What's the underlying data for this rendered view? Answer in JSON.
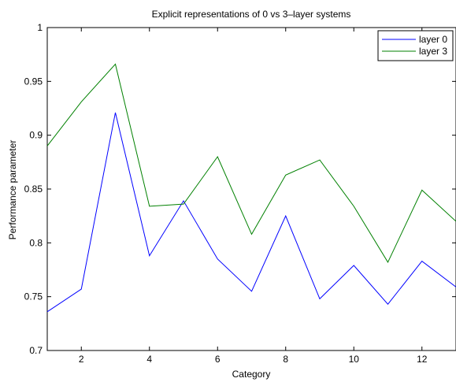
{
  "chart_data": {
    "type": "line",
    "title": "Explicit representations of 0 vs 3–layer systems",
    "xlabel": "Category",
    "ylabel": "Performance parameter",
    "xlim": [
      1,
      13
    ],
    "ylim": [
      0.7,
      1.0
    ],
    "xticks": [
      2,
      4,
      6,
      8,
      10,
      12
    ],
    "xtick_labels": [
      "2",
      "4",
      "6",
      "8",
      "10",
      "12"
    ],
    "yticks": [
      0.7,
      0.75,
      0.8,
      0.85,
      0.9,
      0.95,
      1.0
    ],
    "ytick_labels": [
      "0.7",
      "0.75",
      "0.8",
      "0.85",
      "0.9",
      "0.95",
      "1"
    ],
    "grid": false,
    "legend_position": "top-right",
    "x": [
      1,
      2,
      3,
      4,
      5,
      6,
      7,
      8,
      9,
      10,
      11,
      12,
      13
    ],
    "series": [
      {
        "name": "layer 0",
        "color": "#0000ff",
        "values": [
          0.736,
          0.757,
          0.921,
          0.788,
          0.839,
          0.785,
          0.755,
          0.825,
          0.748,
          0.779,
          0.743,
          0.783,
          0.759
        ]
      },
      {
        "name": "layer 3",
        "color": "#008000",
        "values": [
          0.89,
          0.931,
          0.966,
          0.834,
          0.836,
          0.88,
          0.808,
          0.863,
          0.877,
          0.834,
          0.782,
          0.849,
          0.82
        ]
      }
    ]
  }
}
